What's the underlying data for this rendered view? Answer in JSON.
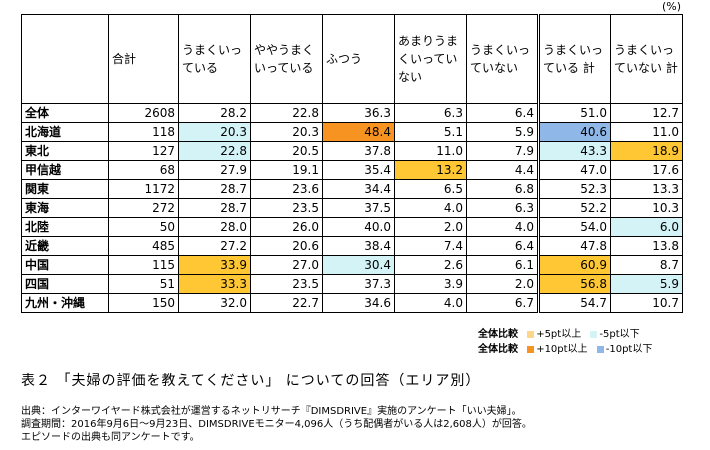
{
  "unit": "(%)",
  "table": {
    "headers": [
      "",
      "合計",
      "うまくいっている",
      "ややうまくいっている",
      "ふつう",
      "あまりうまくいっていない",
      "うまくいっていない",
      "うまくいっている 計",
      "うまくいっていない 計"
    ],
    "rows": [
      {
        "region": "全体",
        "cells": [
          "2608",
          "28.2",
          "22.8",
          "36.3",
          "6.3",
          "6.4",
          "51.0",
          "12.7"
        ]
      },
      {
        "region": "北海道",
        "cells": [
          "118",
          "20.3",
          "20.3",
          "48.4",
          "5.1",
          "5.9",
          "40.6",
          "11.0"
        ]
      },
      {
        "region": "東北",
        "cells": [
          "127",
          "22.8",
          "20.5",
          "37.8",
          "11.0",
          "7.9",
          "43.3",
          "18.9"
        ]
      },
      {
        "region": "甲信越",
        "cells": [
          "68",
          "27.9",
          "19.1",
          "35.4",
          "13.2",
          "4.4",
          "47.0",
          "17.6"
        ]
      },
      {
        "region": "関東",
        "cells": [
          "1172",
          "28.7",
          "23.6",
          "34.4",
          "6.5",
          "6.8",
          "52.3",
          "13.3"
        ]
      },
      {
        "region": "東海",
        "cells": [
          "272",
          "28.7",
          "23.5",
          "37.5",
          "4.0",
          "6.3",
          "52.2",
          "10.3"
        ]
      },
      {
        "region": "北陸",
        "cells": [
          "50",
          "28.0",
          "26.0",
          "40.0",
          "2.0",
          "4.0",
          "54.0",
          "6.0"
        ]
      },
      {
        "region": "近畿",
        "cells": [
          "485",
          "27.2",
          "20.6",
          "38.4",
          "7.4",
          "6.4",
          "47.8",
          "13.8"
        ]
      },
      {
        "region": "中国",
        "cells": [
          "115",
          "33.9",
          "27.0",
          "30.4",
          "2.6",
          "6.1",
          "60.9",
          "8.7"
        ]
      },
      {
        "region": "四国",
        "cells": [
          "51",
          "33.3",
          "23.5",
          "37.3",
          "3.9",
          "2.0",
          "56.8",
          "5.9"
        ]
      },
      {
        "region": "九州・沖縄",
        "cells": [
          "150",
          "32.0",
          "22.7",
          "34.6",
          "4.0",
          "6.7",
          "54.7",
          "10.7"
        ]
      }
    ],
    "highlights": {
      "1-1": "lightblue",
      "1-3": "orange",
      "1-6": "blue",
      "2-1": "lightblue",
      "2-6": "lightblue",
      "2-7": "yellow",
      "3-4": "yellow",
      "6-7": "lightblue",
      "8-1": "yellow",
      "8-3": "lightblue",
      "8-6": "yellow",
      "9-1": "yellow",
      "9-6": "yellow",
      "9-7": "lightblue"
    }
  },
  "legend": {
    "title": "全体比較",
    "row1": [
      {
        "color": "#fdd58b",
        "label": "+5pt以上"
      },
      {
        "color": "#d3f3f7",
        "label": "-5pt以下"
      }
    ],
    "row2": [
      {
        "color": "#f79421",
        "label": "+10pt以上"
      },
      {
        "color": "#8fb8e9",
        "label": "-10pt以下"
      }
    ]
  },
  "caption": "表２ 「夫婦の評価を教えてください」 についての回答（エリア別）",
  "source": [
    "出典：インターワイヤード株式会社が運営するネットリサーチ『DIMSDRIVE』実施のアンケート「いい夫婦」。",
    "調査期間：2016年9月6日～9月23日、DIMSDRIVEモニター4,096人（うち配偶者がいる人は2,608人）が回答。",
    "エピソードの出典も同アンケートです。"
  ]
}
